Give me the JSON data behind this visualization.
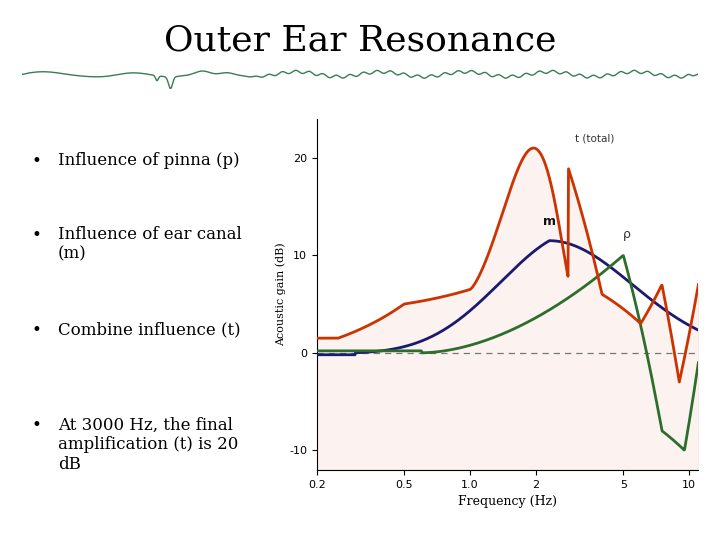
{
  "title": "Outer Ear Resonance",
  "bullet_points": [
    "Influence of pinna (p)",
    "Influence of ear canal\n(m)",
    "Combine influence (t)",
    "At 3000 Hz, the final\namplification (t) is 20\ndB"
  ],
  "xlabel": "Frequency (Hz)",
  "ylabel": "Acoustic gain (dB)",
  "xlim_log": [
    0.2,
    11.0
  ],
  "xticks": [
    0.2,
    0.5,
    1.0,
    2.0,
    5.0,
    10.0
  ],
  "xtick_labels": [
    "0.2",
    "0.5",
    "1.0",
    "2",
    "5",
    "10"
  ],
  "ylim": [
    -12,
    24
  ],
  "yticks": [
    -10,
    0,
    10,
    20
  ],
  "color_total": "#cc3300",
  "color_m": "#1a1a6e",
  "color_p": "#2d6e2d",
  "dashed_zero_color": "#777777",
  "background_color": "#ffffff",
  "annotation_t": "t (total)",
  "annotation_m": "m",
  "annotation_p": "ρ"
}
